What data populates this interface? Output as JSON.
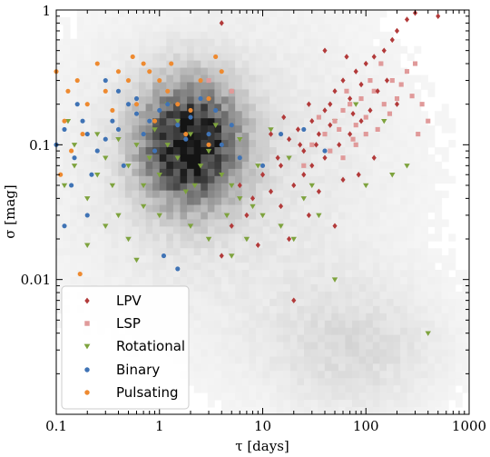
{
  "chart_data": {
    "type": "scatter",
    "xlabel": "τ [days]",
    "ylabel": "σ [mag]",
    "xscale": "log",
    "yscale": "log",
    "xlim": [
      0.1,
      1000
    ],
    "ylim": [
      0.001,
      1
    ],
    "x_tick_labels": [
      "0.1",
      "1",
      "10",
      "100",
      "1000"
    ],
    "y_tick_labels": [
      "0.01",
      "0.1",
      "1"
    ],
    "grid": false,
    "legend": {
      "placement": "lower-left"
    },
    "background_density": {
      "description_hint": "grayscale 2D histogram of all sources",
      "clusters": [
        {
          "x_center": 2.0,
          "y_center": 0.1,
          "strength": "strong"
        },
        {
          "x_center": 80,
          "y_center": 0.003,
          "strength": "weak"
        }
      ]
    },
    "series": [
      {
        "name": "LPV",
        "marker": "diamond",
        "color": "#b23a3a",
        "points": [
          [
            10,
            0.06
          ],
          [
            14,
            0.08
          ],
          [
            18,
            0.11
          ],
          [
            22,
            0.13
          ],
          [
            25,
            0.09
          ],
          [
            30,
            0.15
          ],
          [
            35,
            0.12
          ],
          [
            40,
            0.18
          ],
          [
            45,
            0.2
          ],
          [
            50,
            0.25
          ],
          [
            60,
            0.3
          ],
          [
            70,
            0.22
          ],
          [
            80,
            0.35
          ],
          [
            90,
            0.28
          ],
          [
            100,
            0.4
          ],
          [
            120,
            0.45
          ],
          [
            150,
            0.5
          ],
          [
            180,
            0.6
          ],
          [
            200,
            0.7
          ],
          [
            250,
            0.85
          ],
          [
            300,
            0.95
          ],
          [
            500,
            0.9
          ],
          [
            8,
            0.04
          ],
          [
            6,
            0.05
          ],
          [
            7,
            0.03
          ],
          [
            12,
            0.045
          ],
          [
            15,
            0.035
          ],
          [
            20,
            0.05
          ],
          [
            25,
            0.06
          ],
          [
            30,
            0.07
          ],
          [
            40,
            0.08
          ],
          [
            55,
            0.1
          ],
          [
            70,
            0.12
          ],
          [
            90,
            0.15
          ],
          [
            110,
            0.18
          ],
          [
            15,
            0.07
          ],
          [
            18,
            0.02
          ],
          [
            20,
            0.007
          ],
          [
            4,
            0.015
          ],
          [
            5,
            0.025
          ],
          [
            9,
            0.018
          ],
          [
            28,
            0.03
          ],
          [
            35,
            0.045
          ],
          [
            50,
            0.025
          ],
          [
            60,
            0.055
          ],
          [
            4,
            0.8
          ],
          [
            40,
            0.5
          ],
          [
            65,
            0.45
          ],
          [
            130,
            0.25
          ],
          [
            160,
            0.3
          ],
          [
            200,
            0.2
          ],
          [
            120,
            0.08
          ],
          [
            85,
            0.06
          ],
          [
            45,
            0.14
          ],
          [
            33,
            0.1
          ],
          [
            23,
            0.1
          ],
          [
            12,
            0.12
          ],
          [
            16,
            0.16
          ],
          [
            28,
            0.2
          ],
          [
            75,
            0.17
          ]
        ]
      },
      {
        "name": "LSP",
        "marker": "square",
        "color": "#e09a9a",
        "points": [
          [
            30,
            0.1
          ],
          [
            40,
            0.12
          ],
          [
            50,
            0.15
          ],
          [
            60,
            0.18
          ],
          [
            70,
            0.2
          ],
          [
            80,
            0.14
          ],
          [
            90,
            0.22
          ],
          [
            100,
            0.16
          ],
          [
            120,
            0.25
          ],
          [
            150,
            0.2
          ],
          [
            180,
            0.3
          ],
          [
            200,
            0.22
          ],
          [
            250,
            0.35
          ],
          [
            300,
            0.4
          ],
          [
            350,
            0.2
          ],
          [
            400,
            0.15
          ],
          [
            60,
            0.08
          ],
          [
            80,
            0.1
          ],
          [
            100,
            0.12
          ],
          [
            45,
            0.09
          ],
          [
            55,
            0.13
          ],
          [
            65,
            0.25
          ],
          [
            110,
            0.3
          ],
          [
            140,
            0.4
          ],
          [
            3,
            0.3
          ],
          [
            5,
            0.25
          ],
          [
            25,
            0.07
          ],
          [
            35,
            0.16
          ],
          [
            75,
            0.11
          ],
          [
            130,
            0.13
          ],
          [
            170,
            0.17
          ],
          [
            220,
            0.28
          ],
          [
            280,
            0.23
          ],
          [
            320,
            0.12
          ]
        ]
      },
      {
        "name": "Rotational",
        "marker": "triangle-down",
        "color": "#7ea33e",
        "points": [
          [
            0.12,
            0.05
          ],
          [
            0.15,
            0.07
          ],
          [
            0.2,
            0.04
          ],
          [
            0.25,
            0.06
          ],
          [
            0.3,
            0.08
          ],
          [
            0.35,
            0.05
          ],
          [
            0.4,
            0.03
          ],
          [
            0.5,
            0.07
          ],
          [
            0.6,
            0.1
          ],
          [
            0.7,
            0.05
          ],
          [
            0.8,
            0.08
          ],
          [
            1.0,
            0.06
          ],
          [
            1.2,
            0.1
          ],
          [
            1.5,
            0.08
          ],
          [
            2,
            0.12
          ],
          [
            2.5,
            0.07
          ],
          [
            3,
            0.09
          ],
          [
            4,
            0.06
          ],
          [
            5,
            0.05
          ],
          [
            6,
            0.04
          ],
          [
            8,
            0.035
          ],
          [
            10,
            0.03
          ],
          [
            15,
            0.025
          ],
          [
            20,
            0.02
          ],
          [
            30,
            0.05
          ],
          [
            50,
            0.15
          ],
          [
            80,
            0.2
          ],
          [
            0.3,
            0.025
          ],
          [
            0.5,
            0.02
          ],
          [
            1,
            0.03
          ],
          [
            2,
            0.025
          ],
          [
            3,
            0.02
          ],
          [
            1.5,
            0.15
          ],
          [
            1.2,
            0.2
          ],
          [
            0.9,
            0.13
          ],
          [
            2.2,
            0.05
          ],
          [
            6,
            0.11
          ],
          [
            12,
            0.13
          ],
          [
            18,
            0.08
          ],
          [
            25,
            0.04
          ],
          [
            35,
            0.03
          ],
          [
            0.15,
            0.1
          ],
          [
            0.13,
            0.15
          ],
          [
            0.25,
            0.12
          ],
          [
            400,
            0.004
          ],
          [
            150,
            0.15
          ],
          [
            250,
            0.07
          ],
          [
            180,
            0.06
          ],
          [
            100,
            0.05
          ],
          [
            50,
            0.01
          ],
          [
            5,
            0.015
          ],
          [
            7,
            0.02
          ],
          [
            0.7,
            0.035
          ],
          [
            0.4,
            0.11
          ],
          [
            1.8,
            0.045
          ],
          [
            3.5,
            0.14
          ],
          [
            4.5,
            0.03
          ],
          [
            9,
            0.07
          ],
          [
            0.2,
            0.018
          ],
          [
            0.6,
            0.014
          ]
        ]
      },
      {
        "name": "Binary",
        "marker": "circle",
        "color": "#3f73b5",
        "points": [
          [
            0.1,
            0.1
          ],
          [
            0.12,
            0.13
          ],
          [
            0.15,
            0.08
          ],
          [
            0.18,
            0.15
          ],
          [
            0.2,
            0.12
          ],
          [
            0.25,
            0.09
          ],
          [
            0.3,
            0.11
          ],
          [
            0.35,
            0.15
          ],
          [
            0.4,
            0.13
          ],
          [
            0.5,
            0.2
          ],
          [
            0.6,
            0.17
          ],
          [
            0.7,
            0.12
          ],
          [
            0.8,
            0.15
          ],
          [
            1.0,
            0.18
          ],
          [
            1.2,
            0.2
          ],
          [
            1.5,
            0.14
          ],
          [
            2,
            0.16
          ],
          [
            3,
            0.12
          ],
          [
            4,
            0.1
          ],
          [
            6,
            0.08
          ],
          [
            10,
            0.07
          ],
          [
            15,
            0.12
          ],
          [
            25,
            0.13
          ],
          [
            40,
            0.09
          ],
          [
            0.14,
            0.05
          ],
          [
            0.22,
            0.06
          ],
          [
            0.45,
            0.07
          ],
          [
            0.9,
            0.09
          ],
          [
            1.8,
            0.11
          ],
          [
            0.3,
            0.3
          ],
          [
            0.4,
            0.25
          ],
          [
            0.6,
            0.22
          ],
          [
            0.16,
            0.2
          ],
          [
            1.1,
            0.015
          ],
          [
            1.5,
            0.012
          ],
          [
            0.12,
            0.025
          ],
          [
            0.2,
            0.03
          ],
          [
            2.5,
            0.22
          ],
          [
            3.5,
            0.18
          ],
          [
            5,
            0.14
          ]
        ]
      },
      {
        "name": "Pulsating",
        "marker": "circle",
        "color": "#ee8a30",
        "points": [
          [
            0.1,
            0.35
          ],
          [
            0.13,
            0.25
          ],
          [
            0.16,
            0.3
          ],
          [
            0.2,
            0.2
          ],
          [
            0.25,
            0.4
          ],
          [
            0.3,
            0.25
          ],
          [
            0.4,
            0.35
          ],
          [
            0.5,
            0.3
          ],
          [
            0.6,
            0.2
          ],
          [
            0.7,
            0.4
          ],
          [
            0.8,
            0.35
          ],
          [
            1.0,
            0.3
          ],
          [
            1.2,
            0.25
          ],
          [
            1.5,
            0.2
          ],
          [
            2,
            0.18
          ],
          [
            2.5,
            0.3
          ],
          [
            3,
            0.22
          ],
          [
            4,
            0.35
          ],
          [
            5,
            0.25
          ],
          [
            0.12,
            0.15
          ],
          [
            0.18,
            0.12
          ],
          [
            0.9,
            0.15
          ],
          [
            1.8,
            0.12
          ],
          [
            0.11,
            0.06
          ],
          [
            0.14,
            0.09
          ],
          [
            0.17,
            0.011
          ],
          [
            3,
            0.1
          ],
          [
            0.35,
            0.18
          ],
          [
            0.55,
            0.45
          ],
          [
            1.3,
            0.4
          ],
          [
            3.5,
            0.45
          ]
        ]
      }
    ]
  }
}
